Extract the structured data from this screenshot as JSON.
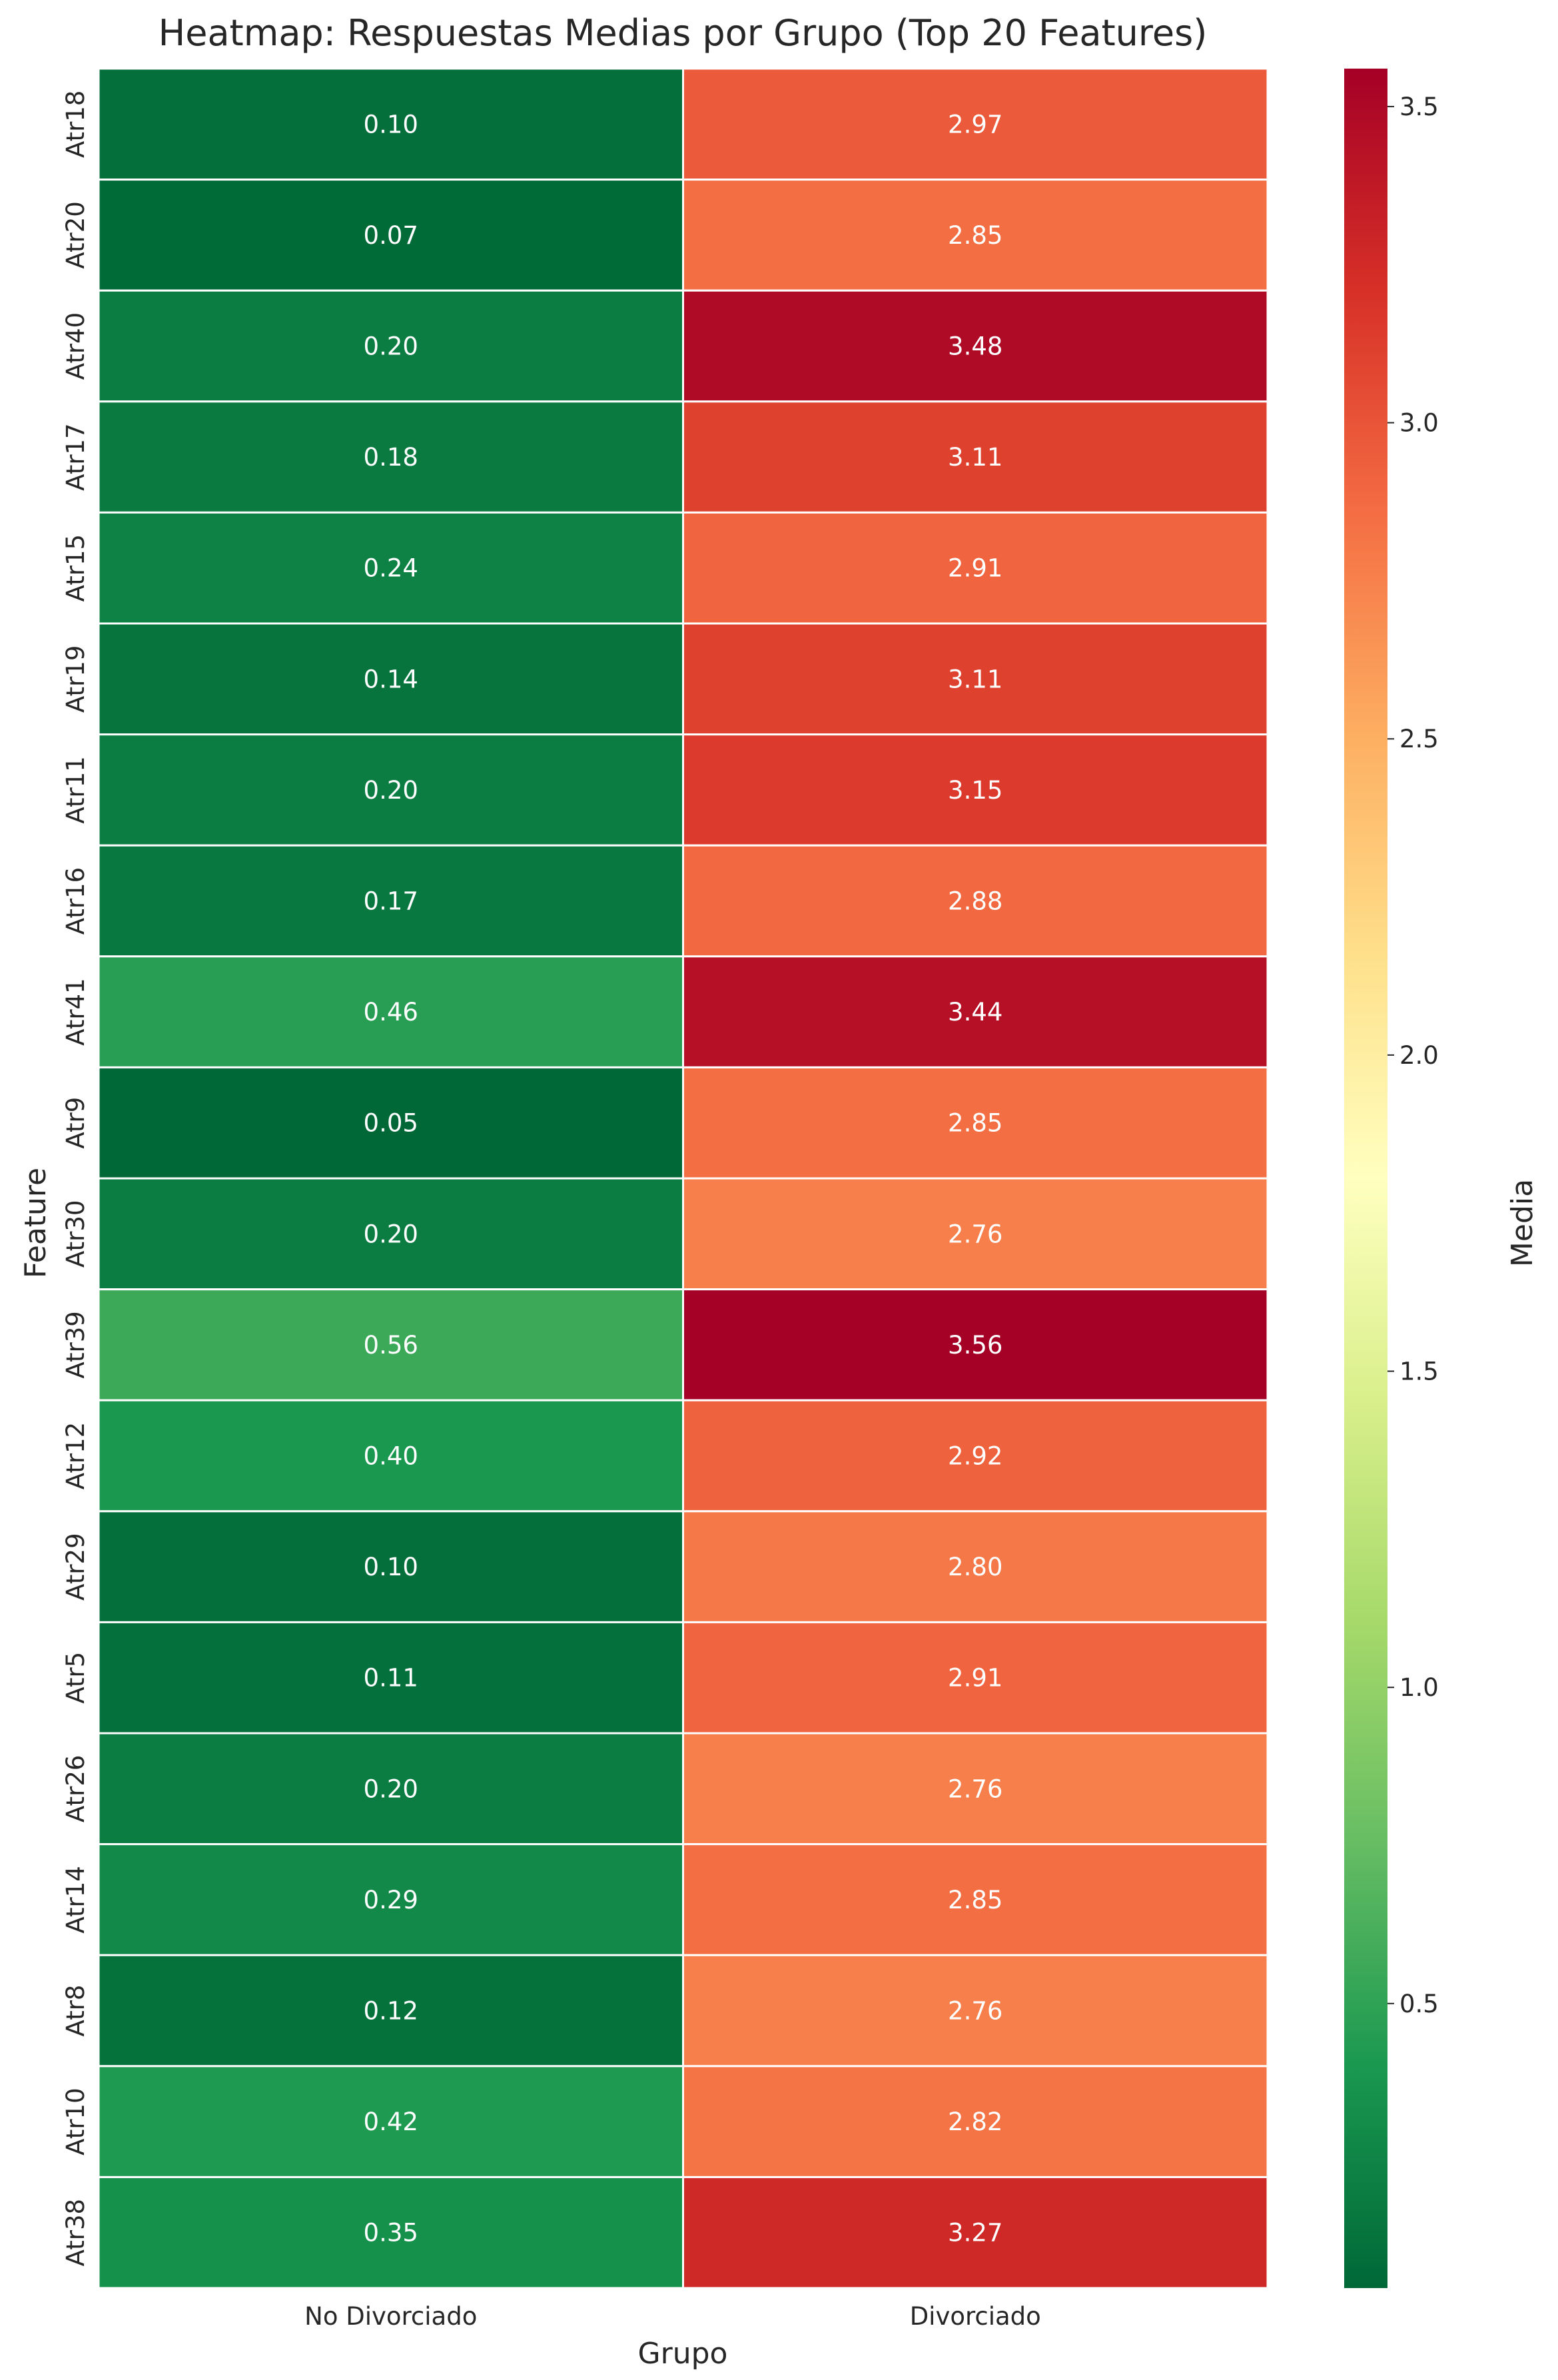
{
  "chart_data": {
    "type": "heatmap",
    "title": "Heatmap: Respuestas Medias por Grupo (Top 20 Features)",
    "xlabel": "Grupo",
    "ylabel": "Feature",
    "columns": [
      "No Divorciado",
      "Divorciado"
    ],
    "rows": [
      "Atr18",
      "Atr20",
      "Atr40",
      "Atr17",
      "Atr15",
      "Atr19",
      "Atr11",
      "Atr16",
      "Atr41",
      "Atr9",
      "Atr30",
      "Atr39",
      "Atr12",
      "Atr29",
      "Atr5",
      "Atr26",
      "Atr14",
      "Atr8",
      "Atr10",
      "Atr38"
    ],
    "values": [
      [
        0.1,
        2.97
      ],
      [
        0.07,
        2.85
      ],
      [
        0.2,
        3.48
      ],
      [
        0.18,
        3.11
      ],
      [
        0.24,
        2.91
      ],
      [
        0.14,
        3.11
      ],
      [
        0.2,
        3.15
      ],
      [
        0.17,
        2.88
      ],
      [
        0.46,
        3.44
      ],
      [
        0.05,
        2.85
      ],
      [
        0.2,
        2.76
      ],
      [
        0.56,
        3.56
      ],
      [
        0.4,
        2.92
      ],
      [
        0.1,
        2.8
      ],
      [
        0.11,
        2.91
      ],
      [
        0.2,
        2.76
      ],
      [
        0.29,
        2.85
      ],
      [
        0.12,
        2.76
      ],
      [
        0.42,
        2.82
      ],
      [
        0.35,
        3.27
      ]
    ],
    "value_format": "0.00",
    "colormap": "RdYlGn_r",
    "colormap_stops": [
      "#006837",
      "#1a9850",
      "#66bd63",
      "#a6d96a",
      "#d9ef8b",
      "#ffffbf",
      "#fee08b",
      "#fdae61",
      "#f46d43",
      "#d73027",
      "#a50026"
    ],
    "colorbar": {
      "label": "Media",
      "range": [
        0.05,
        3.56
      ],
      "ticks": [
        0.5,
        1.0,
        1.5,
        2.0,
        2.5,
        3.0,
        3.5
      ],
      "tick_labels": [
        "0.5",
        "1.0",
        "1.5",
        "2.0",
        "2.5",
        "3.0",
        "3.5"
      ]
    },
    "grid_line_color": "#ffffff"
  }
}
